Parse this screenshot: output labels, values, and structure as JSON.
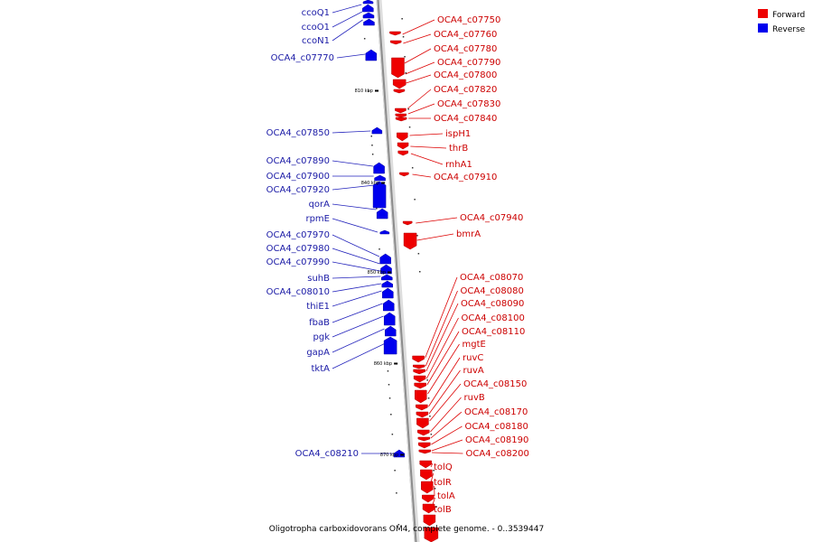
{
  "caption": "Oligotropha carboxidovorans OM4, complete genome. - 0..3539447",
  "legend": [
    {
      "label": "Forward",
      "color": "#ee0000"
    },
    {
      "label": "Reverse",
      "color": "#0000ee"
    }
  ],
  "ticks": [
    "810 kbp",
    "840 kbp",
    "850 kbp",
    "860 kbp",
    "870 kbp"
  ],
  "forward_labels": [
    "OCA4_c07750",
    "OCA4_c07760",
    "OCA4_c07780",
    "OCA4_c07790",
    "OCA4_c07800",
    "OCA4_c07820",
    "OCA4_c07830",
    "OCA4_c07840",
    "ispH1",
    "thrB",
    "rnhA1",
    "OCA4_c07910",
    "OCA4_c07940",
    "bmrA",
    "OCA4_c08070",
    "OCA4_c08080",
    "OCA4_c08090",
    "OCA4_c08100",
    "OCA4_c08110",
    "mgtE",
    "ruvC",
    "ruvA",
    "OCA4_c08150",
    "ruvB",
    "OCA4_c08170",
    "OCA4_c08180",
    "OCA4_c08190",
    "OCA4_c08200",
    "tolQ",
    "tolR",
    "tolA",
    "tolB"
  ],
  "reverse_labels": [
    "ccoQ1",
    "ccoO1",
    "ccoN1",
    "OCA4_c07770",
    "OCA4_c07850",
    "OCA4_c07890",
    "OCA4_c07900",
    "OCA4_c07920",
    "qorA",
    "rpmE",
    "OCA4_c07970",
    "OCA4_c07980",
    "OCA4_c07990",
    "suhB",
    "OCA4_c08010",
    "thiE1",
    "fbaB",
    "pgk",
    "gapA",
    "tktA",
    "OCA4_c08210"
  ]
}
